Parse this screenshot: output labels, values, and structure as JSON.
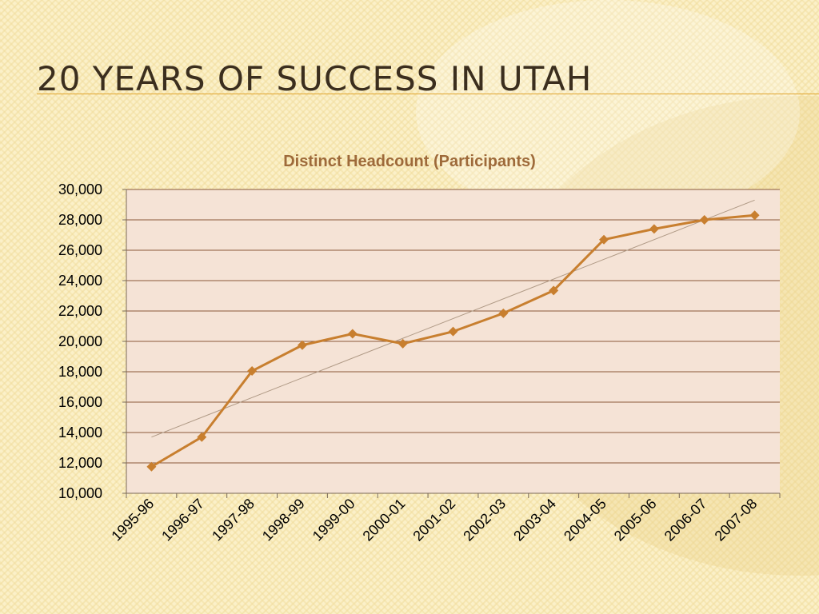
{
  "slide": {
    "title": "20 Years of Success in Utah"
  },
  "colors": {
    "background": "#fbf0c8",
    "plot_area": "#f5e3d6",
    "series_line": "#c87f2f",
    "trendline": "#b09a86",
    "title_text": "#3b2e1e",
    "chart_title_text": "#9e6a3a",
    "title_rule": "#e0a42e"
  },
  "chart_data": {
    "type": "line",
    "title": "Distinct Headcount (Participants)",
    "xlabel": "",
    "ylabel": "",
    "categories": [
      "1995-96",
      "1996-97",
      "1997-98",
      "1998-99",
      "1999-00",
      "2000-01",
      "2001-02",
      "2002-03",
      "2003-04",
      "2004-05",
      "2005-06",
      "2006-07",
      "2007-08"
    ],
    "series": [
      {
        "values": [
          11750,
          13700,
          18050,
          19750,
          20500,
          19850,
          20650,
          21850,
          23350,
          26700,
          27400,
          28000,
          28300
        ],
        "marker": "diamond"
      }
    ],
    "trendline": {
      "type": "linear",
      "start": 13700,
      "end": 29300
    },
    "ylim": [
      10000,
      30000
    ],
    "yticks": [
      "10,000",
      "12,000",
      "14,000",
      "16,000",
      "18,000",
      "20,000",
      "22,000",
      "24,000",
      "26,000",
      "28,000",
      "30,000"
    ],
    "ytick_values": [
      10000,
      12000,
      14000,
      16000,
      18000,
      20000,
      22000,
      24000,
      26000,
      28000,
      30000
    ],
    "grid": true,
    "legend": "none"
  }
}
